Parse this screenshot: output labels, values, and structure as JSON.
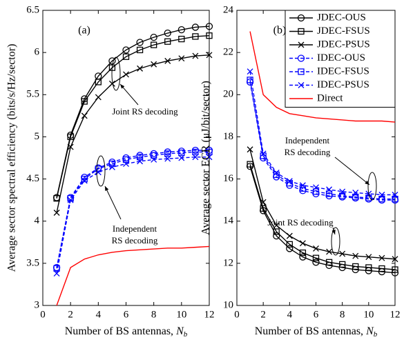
{
  "chart_data": [
    {
      "type": "line",
      "ylabel": "Average sector spectral efficiency (bits/s/Hz/sector)",
      "xlabel": {
        "text": "Number of BS antennas,",
        "var": "N",
        "sub": "b"
      },
      "annotations": [
        {
          "lines": [
            "(a)"
          ]
        },
        {
          "lines": [
            "Joint RS decoding"
          ]
        },
        {
          "lines": [
            "Independent",
            "RS decoding"
          ]
        }
      ],
      "x": [
        1,
        2,
        3,
        4,
        5,
        6,
        7,
        8,
        9,
        10,
        11,
        12
      ],
      "xlim": [
        0,
        12
      ],
      "xticks": [
        0,
        2,
        4,
        6,
        8,
        10,
        12
      ],
      "ylim": [
        3,
        6.5
      ],
      "yticks": [
        3,
        3.5,
        4,
        4.5,
        5,
        5.5,
        6,
        6.5
      ],
      "series": [
        {
          "color": "#000000",
          "marker": "circle",
          "dash": false,
          "values": [
            4.28,
            5.02,
            5.45,
            5.72,
            5.9,
            6.03,
            6.12,
            6.18,
            6.23,
            6.27,
            6.3,
            6.31
          ]
        },
        {
          "color": "#000000",
          "marker": "square",
          "dash": false,
          "values": [
            4.27,
            5.0,
            5.42,
            5.65,
            5.82,
            5.95,
            6.03,
            6.09,
            6.13,
            6.16,
            6.19,
            6.2
          ]
        },
        {
          "color": "#000000",
          "marker": "x",
          "dash": false,
          "values": [
            4.1,
            4.88,
            5.25,
            5.47,
            5.63,
            5.74,
            5.81,
            5.86,
            5.9,
            5.93,
            5.96,
            5.97
          ]
        },
        {
          "color": "#0000ff",
          "marker": "circle",
          "dash": true,
          "values": [
            3.45,
            4.28,
            4.52,
            4.63,
            4.7,
            4.75,
            4.78,
            4.8,
            4.82,
            4.83,
            4.84,
            4.84
          ]
        },
        {
          "color": "#0000ff",
          "marker": "square",
          "dash": true,
          "values": [
            3.44,
            4.27,
            4.5,
            4.62,
            4.68,
            4.73,
            4.76,
            4.78,
            4.8,
            4.81,
            4.82,
            4.82
          ]
        },
        {
          "color": "#0000ff",
          "marker": "x",
          "dash": true,
          "values": [
            3.38,
            4.25,
            4.48,
            4.58,
            4.64,
            4.68,
            4.71,
            4.73,
            4.74,
            4.75,
            4.76,
            4.76
          ]
        },
        {
          "color": "#ff0000",
          "marker": "none",
          "dash": false,
          "values": [
            3.0,
            3.45,
            3.55,
            3.6,
            3.63,
            3.65,
            3.66,
            3.67,
            3.68,
            3.68,
            3.69,
            3.7
          ]
        }
      ]
    },
    {
      "type": "line",
      "ylabel": "Average sector ECR (μJ/bit/sector)",
      "xlabel": {
        "text": "Number of BS antennas,",
        "var": "N",
        "sub": "b"
      },
      "annotations": [
        {
          "lines": [
            "(b)"
          ]
        },
        {
          "lines": [
            "Independent",
            "RS decoding"
          ]
        },
        {
          "lines": [
            "Joint RS decoding"
          ]
        }
      ],
      "legend": "upper right",
      "x": [
        1,
        2,
        3,
        4,
        5,
        6,
        7,
        8,
        9,
        10,
        11,
        12
      ],
      "xlim": [
        0,
        12
      ],
      "xticks": [
        0,
        2,
        4,
        6,
        8,
        10,
        12
      ],
      "ylim": [
        10,
        24
      ],
      "yticks": [
        10,
        12,
        14,
        16,
        18,
        20,
        22,
        24
      ],
      "series": [
        {
          "name": "JDEC-OUS",
          "color": "#000000",
          "marker": "circle",
          "dash": false,
          "values": [
            16.6,
            14.5,
            13.3,
            12.7,
            12.3,
            12.05,
            11.9,
            11.8,
            11.7,
            11.65,
            11.6,
            11.55
          ]
        },
        {
          "name": "JDEC-FSUS",
          "color": "#000000",
          "marker": "square",
          "dash": false,
          "values": [
            16.7,
            14.6,
            13.5,
            12.9,
            12.5,
            12.25,
            12.05,
            11.95,
            11.85,
            11.8,
            11.75,
            11.7
          ]
        },
        {
          "name": "JDEC-PSUS",
          "color": "#000000",
          "marker": "x",
          "dash": false,
          "values": [
            17.4,
            14.9,
            13.8,
            13.3,
            12.95,
            12.7,
            12.55,
            12.45,
            12.35,
            12.3,
            12.25,
            12.2
          ]
        },
        {
          "name": "IDEC-OUS",
          "color": "#0000ff",
          "marker": "circle",
          "dash": true,
          "values": [
            20.6,
            17.0,
            16.1,
            15.7,
            15.45,
            15.3,
            15.2,
            15.15,
            15.1,
            15.05,
            15.0,
            15.0
          ]
        },
        {
          "name": "IDEC-FSUS",
          "color": "#0000ff",
          "marker": "square",
          "dash": true,
          "values": [
            20.7,
            17.1,
            16.2,
            15.8,
            15.55,
            15.4,
            15.3,
            15.2,
            15.15,
            15.1,
            15.05,
            15.05
          ]
        },
        {
          "name": "IDEC-PSUS",
          "color": "#0000ff",
          "marker": "x",
          "dash": true,
          "values": [
            21.1,
            17.2,
            16.3,
            15.9,
            15.7,
            15.6,
            15.5,
            15.4,
            15.35,
            15.3,
            15.25,
            15.25
          ]
        },
        {
          "name": "Direct",
          "color": "#ff0000",
          "marker": "none",
          "dash": false,
          "values": [
            23.0,
            20.0,
            19.4,
            19.1,
            19.0,
            18.9,
            18.85,
            18.8,
            18.75,
            18.75,
            18.75,
            18.7
          ]
        }
      ]
    }
  ]
}
